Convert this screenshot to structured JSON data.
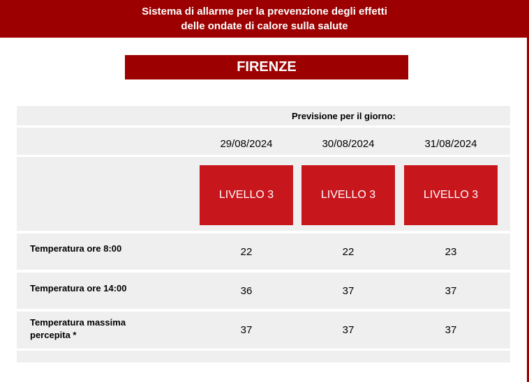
{
  "header": {
    "line1": "Sistema di allarme per la prevenzione degli effetti",
    "line2": "delle ondate di calore sulla salute"
  },
  "city": "FIRENZE",
  "forecast_label": "Previsione per il giorno:",
  "days": [
    {
      "date": "29/08/2024",
      "level": "LIVELLO 3"
    },
    {
      "date": "30/08/2024",
      "level": "LIVELLO 3"
    },
    {
      "date": "31/08/2024",
      "level": "LIVELLO 3"
    }
  ],
  "rows": [
    {
      "label": "Temperatura ore 8:00",
      "values": [
        "22",
        "22",
        "23"
      ]
    },
    {
      "label": "Temperatura ore 14:00",
      "values": [
        "36",
        "37",
        "37"
      ]
    },
    {
      "label": "Temperatura massima percepita *",
      "values": [
        "37",
        "37",
        "37"
      ]
    }
  ],
  "colors": {
    "header": "#9c0000",
    "level": "#c8161d",
    "band": "#efefef"
  }
}
